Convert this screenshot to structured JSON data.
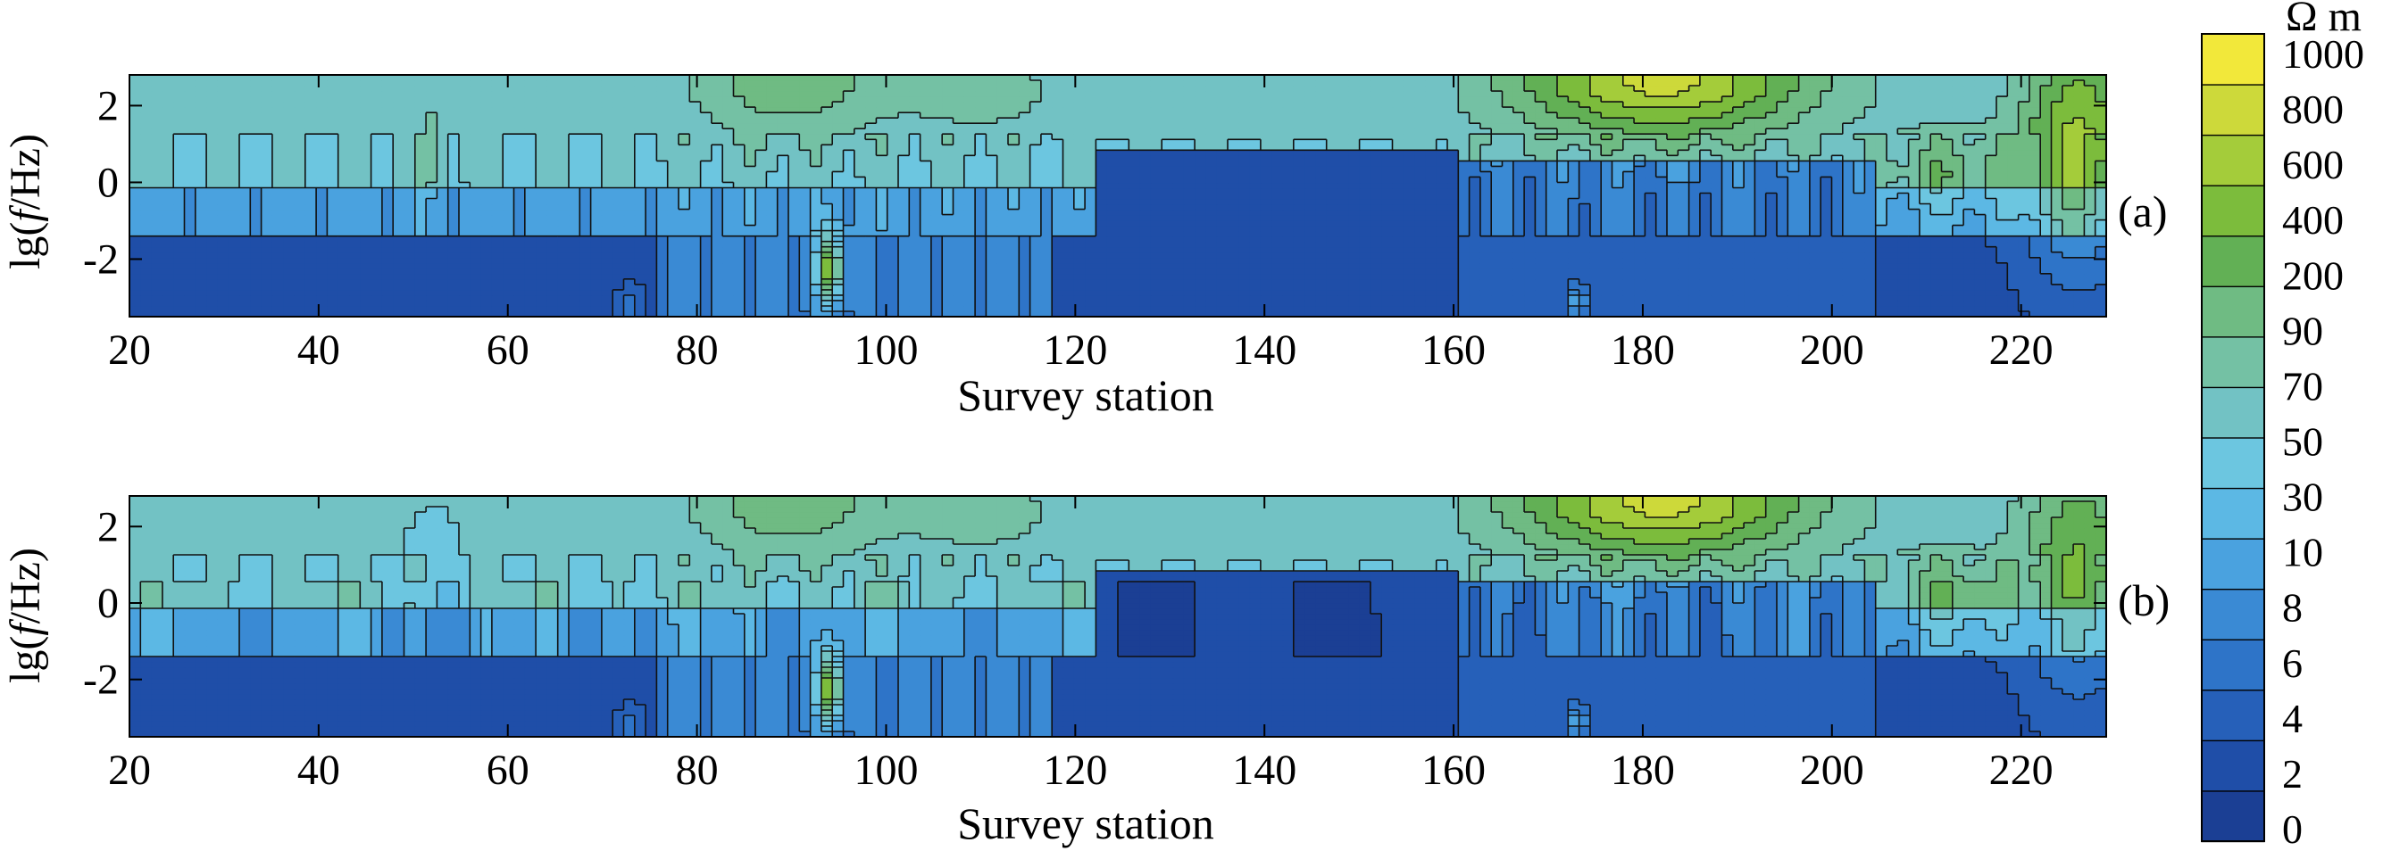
{
  "chart_data": [
    {
      "type": "heatmap",
      "panel_label": "(a)",
      "xlabel": "Survey station",
      "ylabel_prefix": "lg(",
      "ylabel_italic": "f",
      "ylabel_suffix": "/Hz)",
      "xlim": [
        20,
        229
      ],
      "ylim": [
        -3.5,
        2.8
      ],
      "x_ticks": [
        20,
        40,
        60,
        80,
        100,
        120,
        140,
        160,
        180,
        200,
        220
      ],
      "y_ticks": [
        2,
        0,
        -2
      ],
      "y_tick_labels": [
        "2",
        "0",
        "-2"
      ],
      "variant": 0
    },
    {
      "type": "heatmap",
      "panel_label": "(b)",
      "xlabel": "Survey station",
      "ylabel_prefix": "lg(",
      "ylabel_italic": "f",
      "ylabel_suffix": "/Hz)",
      "xlim": [
        20,
        229
      ],
      "ylim": [
        -3.5,
        2.8
      ],
      "x_ticks": [
        20,
        40,
        60,
        80,
        100,
        120,
        140,
        160,
        180,
        200,
        220
      ],
      "y_ticks": [
        2,
        0,
        -2
      ],
      "y_tick_labels": [
        "2",
        "0",
        "-2"
      ],
      "variant": 1
    }
  ],
  "colorbar": {
    "unit": "Ω m",
    "labels": [
      "1000",
      "800",
      "600",
      "400",
      "200",
      "90",
      "70",
      "50",
      "30",
      "10",
      "8",
      "6",
      "4",
      "2",
      "0"
    ],
    "colors": [
      "#1b3f94",
      "#1f4ea8",
      "#2660b9",
      "#2e74c8",
      "#3a8ad4",
      "#4aa2df",
      "#5cb8e4",
      "#6cc6e0",
      "#72c2c4",
      "#74c1a4",
      "#6fbb83",
      "#62b055",
      "#7cbc3c",
      "#a4cc3a",
      "#cdd93a",
      "#f2e83a"
    ]
  }
}
